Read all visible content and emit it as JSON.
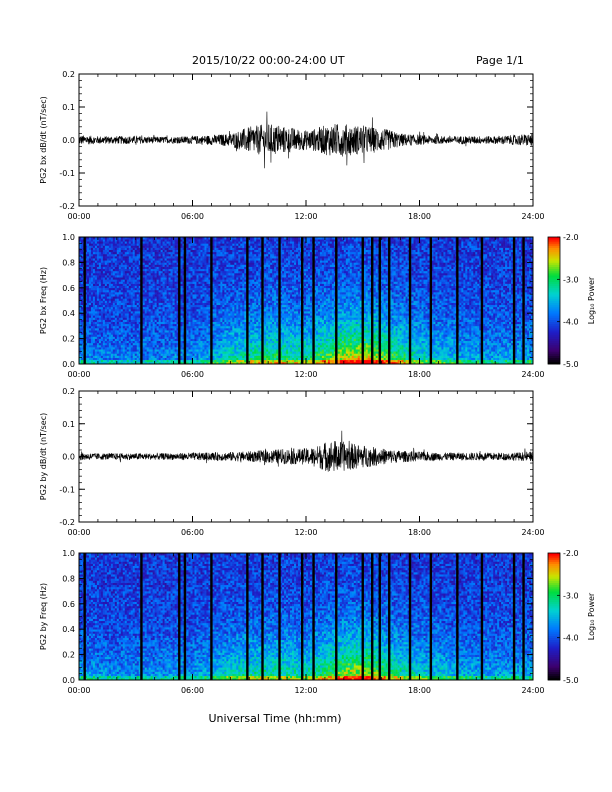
{
  "header": {
    "title": "2015/10/22  00:00-24:00 UT",
    "page": "Page 1/1"
  },
  "xlabel": "Universal Time (hh:mm)",
  "chart_data": [
    {
      "type": "line",
      "ylabel": "PG2 bx dB/dt (nT/sec)",
      "xticks": [
        "00:00",
        "06:00",
        "12:00",
        "18:00",
        "24:00"
      ],
      "xlim": [
        0,
        24
      ],
      "ylim": [
        -0.2,
        0.2
      ],
      "yticks": [
        0.2,
        0.1,
        0.0,
        -0.1,
        -0.2
      ],
      "ytick_labels": [
        "0.2",
        "0.1",
        "0.0",
        "-0.1",
        "-0.2"
      ],
      "envelope_hours": [
        0,
        1,
        2,
        3,
        4,
        5,
        6,
        7,
        8,
        8.5,
        9,
        9.5,
        10,
        10.5,
        11,
        11.5,
        12,
        12.5,
        13,
        13.5,
        14,
        14.5,
        15,
        15.5,
        16,
        16.5,
        17,
        18,
        19,
        20,
        21,
        22,
        23,
        24
      ],
      "envelope_amplitude": [
        0.015,
        0.012,
        0.012,
        0.012,
        0.01,
        0.01,
        0.012,
        0.015,
        0.02,
        0.03,
        0.04,
        0.045,
        0.05,
        0.045,
        0.04,
        0.035,
        0.03,
        0.035,
        0.045,
        0.05,
        0.05,
        0.045,
        0.045,
        0.04,
        0.035,
        0.03,
        0.02,
        0.015,
        0.012,
        0.012,
        0.012,
        0.012,
        0.015,
        0.02
      ]
    },
    {
      "type": "heatmap",
      "ylabel": "PG2 bx Freq (Hz)",
      "xticks": [
        "00:00",
        "06:00",
        "12:00",
        "18:00",
        "24:00"
      ],
      "xlim": [
        0,
        24
      ],
      "ylim": [
        0.0,
        1.0
      ],
      "yticks": [
        1.0,
        0.8,
        0.6,
        0.4,
        0.2,
        0.0
      ],
      "ytick_labels": [
        "1.0",
        "0.8",
        "0.6",
        "0.4",
        "0.2",
        "0.0"
      ],
      "colorbar_label": "Log₁₀ Power",
      "colorbar_ticks": [
        "-2.0",
        "-3.0",
        "-4.0",
        "-5.0"
      ],
      "clim": [
        -5.0,
        -2.0
      ],
      "gap_hours": [
        0.3,
        3.3,
        5.3,
        5.6,
        7.0,
        8.9,
        9.7,
        10.6,
        11.8,
        12.4,
        13.6,
        15.0,
        15.5,
        15.9,
        16.4,
        17.5,
        18.6,
        20.0,
        21.3,
        23.0,
        23.5
      ],
      "activity_hours": [
        0,
        2,
        4,
        6,
        7,
        8,
        9,
        10,
        11,
        12,
        13,
        14,
        15,
        16,
        17,
        18,
        20,
        22,
        24
      ],
      "activity_level": [
        0.15,
        0.12,
        0.12,
        0.15,
        0.2,
        0.3,
        0.35,
        0.4,
        0.38,
        0.35,
        0.45,
        0.55,
        0.6,
        0.5,
        0.4,
        0.3,
        0.22,
        0.18,
        0.2
      ]
    },
    {
      "type": "line",
      "ylabel": "PG2 by dB/dt (nT/sec)",
      "xticks": [
        "00:00",
        "06:00",
        "12:00",
        "18:00",
        "24:00"
      ],
      "xlim": [
        0,
        24
      ],
      "ylim": [
        -0.2,
        0.2
      ],
      "yticks": [
        0.2,
        0.1,
        0.0,
        -0.1,
        -0.2
      ],
      "ytick_labels": [
        "0.2",
        "0.1",
        "0.0",
        "-0.1",
        "-0.2"
      ],
      "envelope_hours": [
        0,
        1,
        2,
        3,
        4,
        5,
        6,
        7,
        8,
        9,
        10,
        10.5,
        11,
        11.5,
        12,
        12.5,
        13,
        13.5,
        14,
        14.5,
        15,
        15.5,
        16,
        17,
        18,
        19,
        20,
        21,
        22,
        23,
        24
      ],
      "envelope_amplitude": [
        0.012,
        0.01,
        0.01,
        0.01,
        0.01,
        0.01,
        0.012,
        0.012,
        0.014,
        0.016,
        0.02,
        0.022,
        0.024,
        0.024,
        0.025,
        0.03,
        0.045,
        0.05,
        0.045,
        0.04,
        0.035,
        0.03,
        0.025,
        0.018,
        0.015,
        0.012,
        0.012,
        0.012,
        0.012,
        0.012,
        0.015
      ]
    },
    {
      "type": "heatmap",
      "ylabel": "PG2 by Freq (Hz)",
      "xticks": [
        "00:00",
        "06:00",
        "12:00",
        "18:00",
        "24:00"
      ],
      "xlim": [
        0,
        24
      ],
      "ylim": [
        0.0,
        1.0
      ],
      "yticks": [
        1.0,
        0.8,
        0.6,
        0.4,
        0.2,
        0.0
      ],
      "ytick_labels": [
        "1.0",
        "0.8",
        "0.6",
        "0.4",
        "0.2",
        "0.0"
      ],
      "colorbar_label": "Log₁₀ Power",
      "colorbar_ticks": [
        "-2.0",
        "-3.0",
        "-4.0",
        "-5.0"
      ],
      "clim": [
        -5.0,
        -2.0
      ],
      "gap_hours": [
        0.3,
        3.3,
        5.3,
        5.6,
        7.0,
        8.9,
        9.7,
        10.6,
        11.8,
        12.4,
        13.6,
        15.0,
        15.5,
        15.9,
        16.4,
        17.5,
        18.6,
        20.0,
        21.3,
        23.0,
        23.5
      ],
      "activity_hours": [
        0,
        2,
        4,
        6,
        7,
        8,
        9,
        10,
        11,
        12,
        13,
        14,
        15,
        16,
        17,
        18,
        20,
        22,
        24
      ],
      "activity_level": [
        0.18,
        0.15,
        0.15,
        0.18,
        0.22,
        0.3,
        0.32,
        0.35,
        0.33,
        0.32,
        0.4,
        0.5,
        0.55,
        0.45,
        0.35,
        0.28,
        0.22,
        0.18,
        0.2
      ]
    }
  ]
}
